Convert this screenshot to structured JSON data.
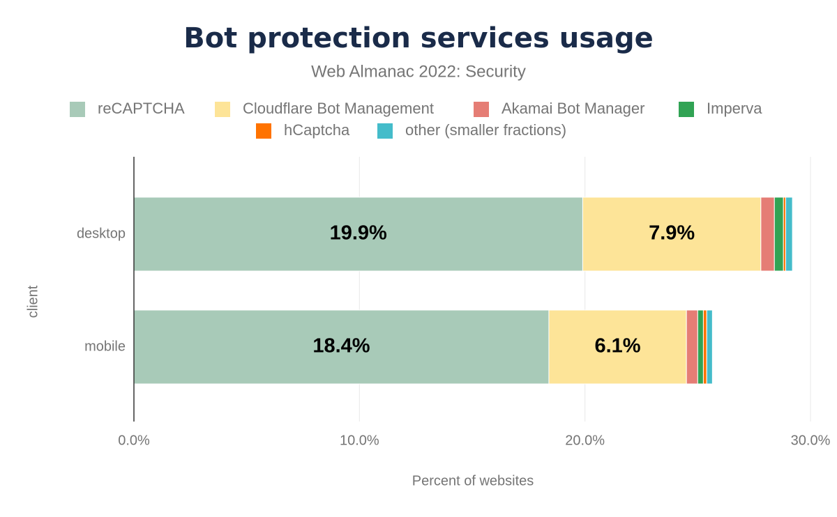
{
  "chart_data": {
    "type": "stacked-bar-horizontal",
    "title": "Bot protection services usage",
    "subtitle": "Web Almanac 2022: Security",
    "categories": [
      "desktop",
      "mobile"
    ],
    "x_label": "Percent of websites",
    "y_label": "client",
    "xlim": [
      0,
      30
    ],
    "xticks": [
      {
        "value": 0,
        "label": "0.0%"
      },
      {
        "value": 10,
        "label": "10.0%"
      },
      {
        "value": 20,
        "label": "20.0%"
      },
      {
        "value": 30,
        "label": "30.0%"
      }
    ],
    "grid": true,
    "series": [
      {
        "name": "reCAPTCHA",
        "color": "#a8cab8",
        "values": [
          19.9,
          18.4
        ],
        "value_labels": [
          "19.9%",
          "18.4%"
        ]
      },
      {
        "name": "Cloudflare Bot Management",
        "color": "#fde498",
        "values": [
          7.9,
          6.1
        ],
        "value_labels": [
          "7.9%",
          "6.1%"
        ]
      },
      {
        "name": "Akamai Bot Manager",
        "color": "#e57d75",
        "values": [
          0.6,
          0.5
        ]
      },
      {
        "name": "Imperva",
        "color": "#31a354",
        "values": [
          0.4,
          0.25
        ]
      },
      {
        "name": "hCaptcha",
        "color": "#ff7300",
        "values": [
          0.1,
          0.15
        ]
      },
      {
        "name": "other (smaller fractions)",
        "color": "#44bcca",
        "values": [
          0.3,
          0.25
        ]
      }
    ]
  }
}
